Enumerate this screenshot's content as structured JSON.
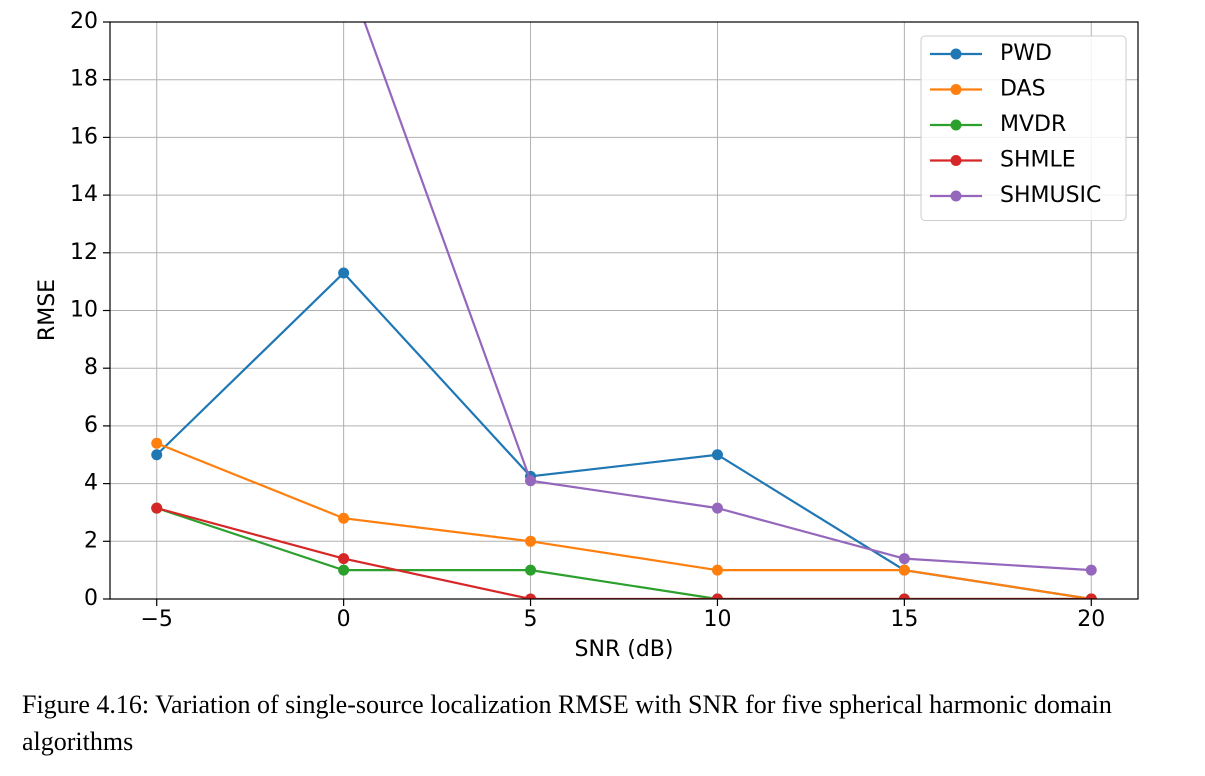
{
  "chart_data": {
    "type": "line",
    "x": [
      -5,
      0,
      5,
      10,
      15,
      20
    ],
    "xlabel": "SNR (dB)",
    "ylabel": "RMSE",
    "xlim": [
      -6.25,
      21.25
    ],
    "ylim": [
      0,
      20
    ],
    "xticks": [
      {
        "value": -5,
        "label": "−5"
      },
      0,
      5,
      10,
      15,
      20
    ],
    "yticks": [
      0,
      2,
      4,
      6,
      8,
      10,
      12,
      14,
      16,
      18,
      20
    ],
    "grid": true,
    "legend": "upper right",
    "series": [
      {
        "name": "PWD",
        "color": "#1f77b4",
        "values": [
          5,
          11.3,
          4.25,
          5,
          1,
          0
        ]
      },
      {
        "name": "DAS",
        "color": "#ff7f0e",
        "values": [
          5.4,
          2.8,
          2,
          1,
          1,
          0
        ]
      },
      {
        "name": "MVDR",
        "color": "#2ca02c",
        "values": [
          3.15,
          1,
          1,
          0,
          0,
          0
        ]
      },
      {
        "name": "SHMLE",
        "color": "#d62728",
        "values": [
          3.15,
          1.4,
          0,
          0,
          0,
          0
        ]
      },
      {
        "name": "SHMUSIC",
        "color": "#9467bd",
        "values": [
          null,
          22,
          4.1,
          3.15,
          1.4,
          1
        ]
      }
    ]
  },
  "caption": "Figure 4.16: Variation of single-source localization RMSE with SNR for five spherical harmonic domain algorithms"
}
